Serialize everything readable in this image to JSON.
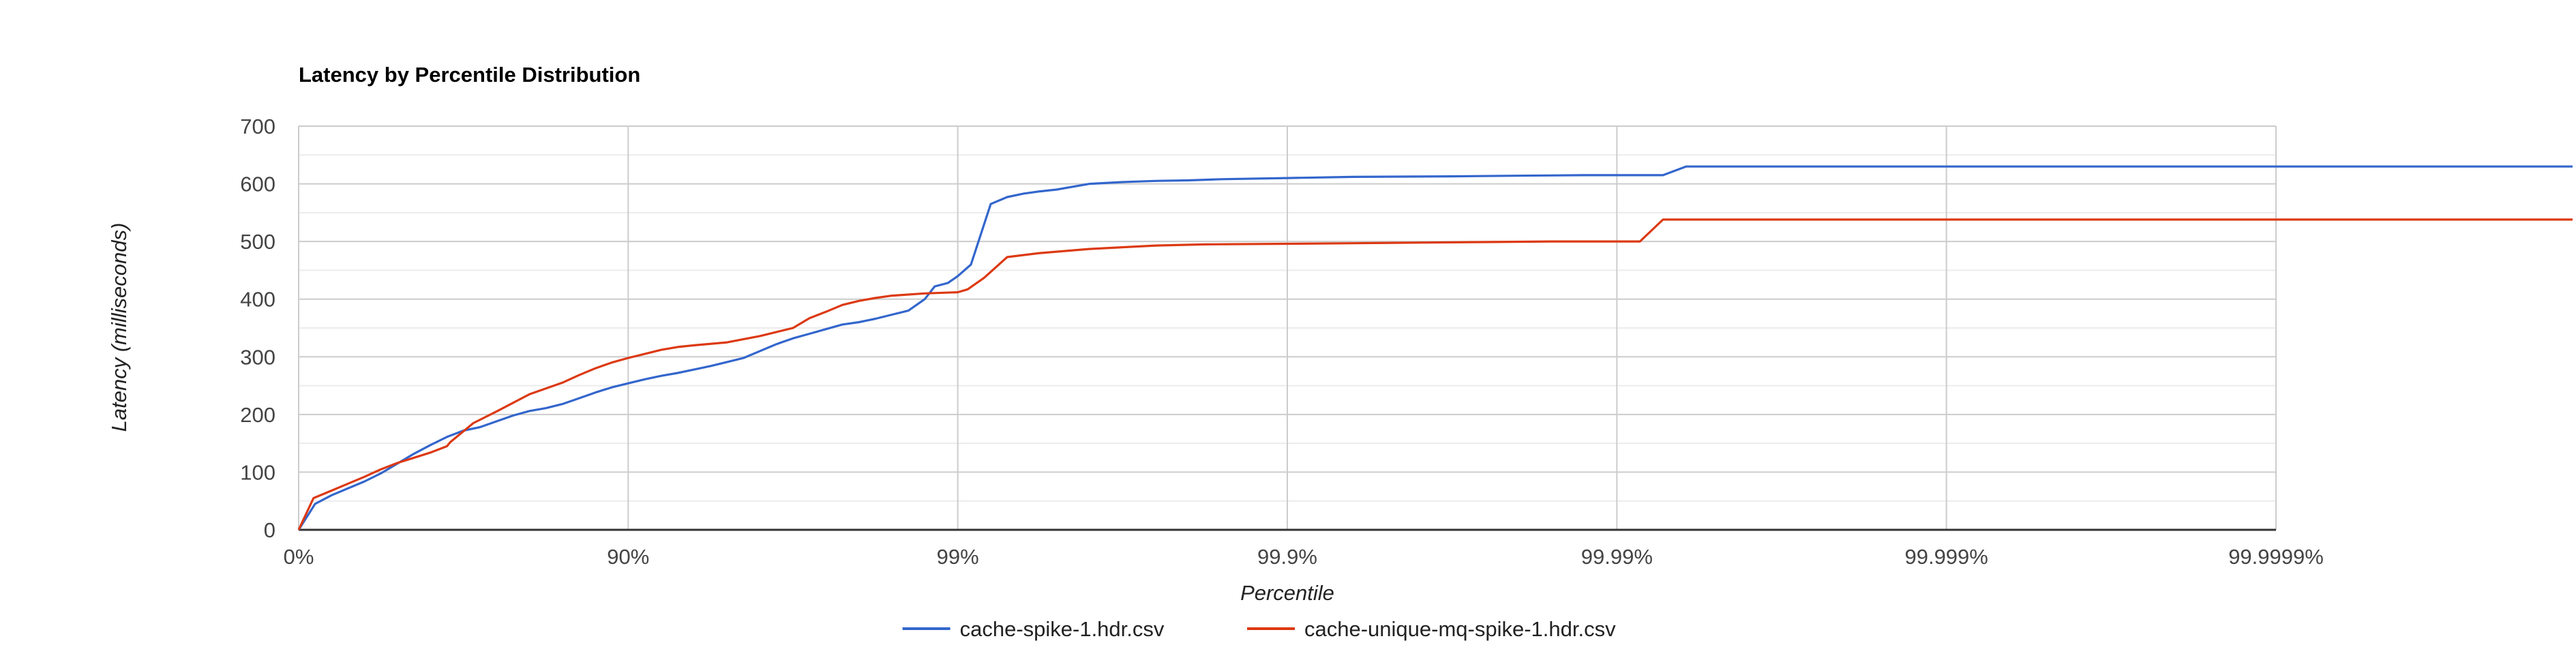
{
  "chart_data": {
    "type": "line",
    "title": "Latency by Percentile Distribution",
    "xlabel": "Percentile",
    "ylabel": "Latency (milliseconds)",
    "x_scale": "percentile-nines (log of 1/(1-p))",
    "x_ticks": [
      "0%",
      "90%",
      "99%",
      "99.9%",
      "99.99%",
      "99.999%",
      "99.9999%"
    ],
    "x_range_nines": [
      0,
      6.9
    ],
    "y_ticks": [
      0,
      100,
      200,
      300,
      400,
      500,
      600,
      700
    ],
    "ylim": [
      0,
      700
    ],
    "grid": true,
    "legend_position": "bottom",
    "series": [
      {
        "name": "cache-spike-1.hdr.csv",
        "color": "#3366cc",
        "points": [
          [
            0,
            0
          ],
          [
            0.05,
            45
          ],
          [
            0.1,
            60
          ],
          [
            0.15,
            72
          ],
          [
            0.2,
            84
          ],
          [
            0.25,
            98
          ],
          [
            0.3,
            115
          ],
          [
            0.35,
            132
          ],
          [
            0.4,
            147
          ],
          [
            0.45,
            161
          ],
          [
            0.5,
            172
          ],
          [
            0.55,
            178
          ],
          [
            0.6,
            188
          ],
          [
            0.65,
            198
          ],
          [
            0.7,
            206
          ],
          [
            0.75,
            211
          ],
          [
            0.8,
            218
          ],
          [
            0.85,
            228
          ],
          [
            0.9,
            238
          ],
          [
            0.95,
            247
          ],
          [
            1.0,
            254
          ],
          [
            1.05,
            261
          ],
          [
            1.1,
            267
          ],
          [
            1.15,
            272
          ],
          [
            1.2,
            278
          ],
          [
            1.25,
            284
          ],
          [
            1.3,
            291
          ],
          [
            1.35,
            298
          ],
          [
            1.4,
            310
          ],
          [
            1.45,
            322
          ],
          [
            1.5,
            332
          ],
          [
            1.55,
            340
          ],
          [
            1.6,
            348
          ],
          [
            1.65,
            356
          ],
          [
            1.7,
            360
          ],
          [
            1.75,
            366
          ],
          [
            1.8,
            373
          ],
          [
            1.85,
            380
          ],
          [
            1.9,
            400
          ],
          [
            1.93,
            422
          ],
          [
            1.97,
            428
          ],
          [
            2.0,
            440
          ],
          [
            2.04,
            460
          ],
          [
            2.1,
            565
          ],
          [
            2.15,
            577
          ],
          [
            2.2,
            583
          ],
          [
            2.25,
            587
          ],
          [
            2.3,
            590
          ],
          [
            2.4,
            600
          ],
          [
            2.5,
            603
          ],
          [
            2.6,
            605
          ],
          [
            2.7,
            606
          ],
          [
            2.8,
            608
          ],
          [
            3.0,
            610
          ],
          [
            3.2,
            612
          ],
          [
            3.5,
            613
          ],
          [
            3.7,
            614
          ],
          [
            3.9,
            615
          ],
          [
            4.14,
            615
          ],
          [
            4.21,
            630
          ],
          [
            6.9,
            630
          ]
        ]
      },
      {
        "name": "cache-unique-mq-spike-1.hdr.csv",
        "color": "#dc3912",
        "points": [
          [
            0,
            0
          ],
          [
            0.045,
            55
          ],
          [
            0.1,
            68
          ],
          [
            0.15,
            80
          ],
          [
            0.2,
            92
          ],
          [
            0.25,
            105
          ],
          [
            0.3,
            116
          ],
          [
            0.35,
            125
          ],
          [
            0.4,
            134
          ],
          [
            0.45,
            145
          ],
          [
            0.46,
            152
          ],
          [
            0.53,
            185
          ],
          [
            0.6,
            205
          ],
          [
            0.65,
            220
          ],
          [
            0.7,
            235
          ],
          [
            0.8,
            255
          ],
          [
            0.85,
            268
          ],
          [
            0.9,
            280
          ],
          [
            0.95,
            290
          ],
          [
            1.0,
            298
          ],
          [
            1.05,
            305
          ],
          [
            1.1,
            312
          ],
          [
            1.15,
            317
          ],
          [
            1.2,
            320
          ],
          [
            1.3,
            325
          ],
          [
            1.4,
            336
          ],
          [
            1.5,
            350
          ],
          [
            1.55,
            367
          ],
          [
            1.6,
            378
          ],
          [
            1.65,
            390
          ],
          [
            1.7,
            397
          ],
          [
            1.75,
            402
          ],
          [
            1.8,
            406
          ],
          [
            1.9,
            410
          ],
          [
            2.0,
            412
          ],
          [
            2.03,
            417
          ],
          [
            2.08,
            437
          ],
          [
            2.15,
            473
          ],
          [
            2.25,
            480
          ],
          [
            2.4,
            487
          ],
          [
            2.5,
            490
          ],
          [
            2.6,
            493
          ],
          [
            2.75,
            495
          ],
          [
            3.0,
            496
          ],
          [
            3.2,
            497
          ],
          [
            3.4,
            498
          ],
          [
            3.6,
            499
          ],
          [
            3.8,
            500
          ],
          [
            4.07,
            500
          ],
          [
            4.14,
            538
          ],
          [
            6.9,
            538
          ]
        ]
      }
    ]
  }
}
